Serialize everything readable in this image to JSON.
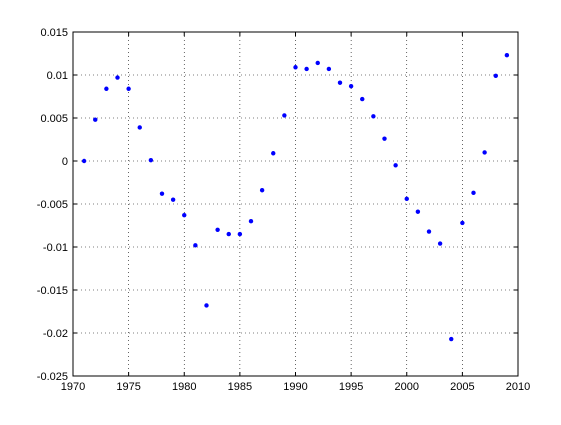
{
  "chart_data": {
    "type": "scatter",
    "title": "",
    "xlabel": "",
    "ylabel": "",
    "xlim": [
      1970,
      2010
    ],
    "ylim": [
      -0.025,
      0.015
    ],
    "xticks": [
      1970,
      1975,
      1980,
      1985,
      1990,
      1995,
      2000,
      2005,
      2010
    ],
    "yticks": [
      -0.025,
      -0.02,
      -0.015,
      -0.01,
      -0.005,
      0,
      0.005,
      0.01,
      0.015
    ],
    "xtick_labels": [
      "1970",
      "1975",
      "1980",
      "1985",
      "1990",
      "1995",
      "2000",
      "2005",
      "2010"
    ],
    "ytick_labels": [
      "-0.025",
      "-0.02",
      "-0.015",
      "-0.01",
      "-0.005",
      "0",
      "0.005",
      "0.01",
      "0.015"
    ],
    "grid": true,
    "grid_style": "dotted",
    "marker_color": "#0000ff",
    "series": [
      {
        "x": [
          1971,
          1972,
          1973,
          1974,
          1975,
          1976,
          1977,
          1978,
          1979,
          1980,
          1981,
          1982,
          1983,
          1984,
          1985,
          1986,
          1987,
          1988,
          1989,
          1990,
          1991,
          1992,
          1993,
          1994,
          1995,
          1996,
          1997,
          1998,
          1999,
          2000,
          2001,
          2002,
          2003,
          2004,
          2005,
          2006,
          2007,
          2008,
          2009
        ],
        "y": [
          0.0,
          0.0048,
          0.0084,
          0.0097,
          0.0084,
          0.0039,
          0.0001,
          -0.0038,
          -0.0045,
          -0.0063,
          -0.0098,
          -0.0168,
          -0.008,
          -0.0085,
          -0.0085,
          -0.007,
          -0.0034,
          0.0009,
          0.0053,
          0.0109,
          0.0107,
          0.0114,
          0.0107,
          0.0091,
          0.0087,
          0.0072,
          0.0052,
          0.0026,
          -0.0005,
          -0.0044,
          -0.0059,
          -0.0082,
          -0.0096,
          -0.0207,
          -0.0072,
          -0.0037,
          0.001,
          0.0099,
          0.0123
        ]
      }
    ]
  }
}
